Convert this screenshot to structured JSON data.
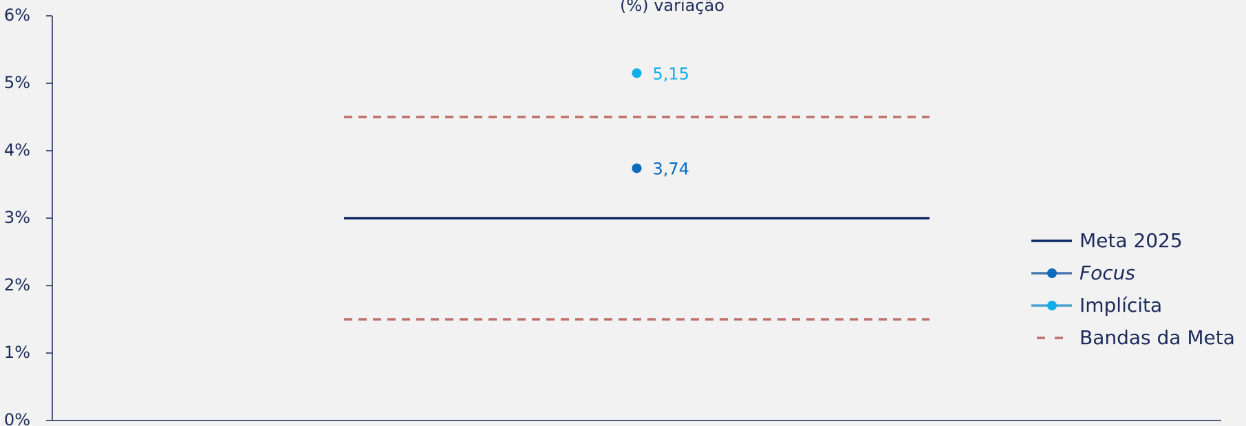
{
  "chart_data": {
    "type": "line",
    "title": "(%) variação",
    "categories": [
      null
    ],
    "series": [
      {
        "name": "Meta  2025",
        "color": "#0d2a63",
        "values": [
          3
        ]
      },
      {
        "name": "Focus",
        "color": "#0a6bbf",
        "values": [
          3.74
        ],
        "value_labels": [
          "3,74"
        ]
      },
      {
        "name": "Implícita",
        "color": "#10aee8",
        "values": [
          5.15
        ],
        "value_labels": [
          "5,15"
        ]
      }
    ],
    "bands": {
      "name": "Bandas da Meta",
      "color": "#c0706a",
      "values": [
        4.5,
        1.5
      ]
    },
    "ylim": [
      0,
      6
    ],
    "yticks": [
      {
        "value": 0,
        "label": "0%"
      },
      {
        "value": 1,
        "label": "1%"
      },
      {
        "value": 2,
        "label": "2%"
      },
      {
        "value": 3,
        "label": "3%"
      },
      {
        "value": 4,
        "label": "4%"
      },
      {
        "value": 5,
        "label": "5%"
      },
      {
        "value": 6,
        "label": "6%"
      }
    ],
    "legend": "right"
  }
}
